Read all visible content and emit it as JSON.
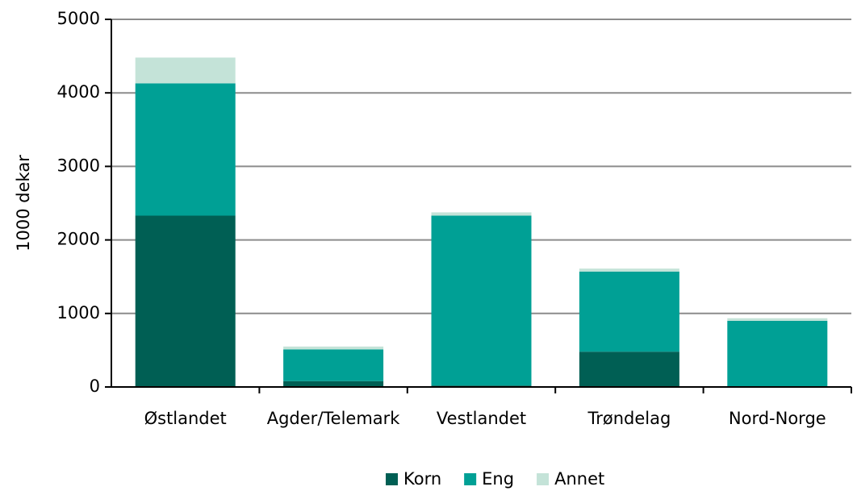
{
  "chart_data": {
    "type": "stacked_bar",
    "ylabel": "1000 dekar",
    "categories": [
      "Østlandet",
      "Agder/Telemark",
      "Vestlandet",
      "Trøndelag",
      "Nord-Norge"
    ],
    "series": [
      {
        "name": "Korn",
        "color": "#005f54",
        "values": [
          2330,
          80,
          20,
          480,
          10
        ]
      },
      {
        "name": "Eng",
        "color": "#00a095",
        "values": [
          1800,
          430,
          2310,
          1090,
          890
        ]
      },
      {
        "name": "Annet",
        "color": "#c4e3d8",
        "values": [
          350,
          40,
          45,
          40,
          35
        ]
      }
    ],
    "ylim": [
      0,
      5000
    ],
    "yticks": [
      0,
      1000,
      2000,
      3000,
      4000,
      5000
    ],
    "grid": true,
    "legend": "bottom"
  }
}
